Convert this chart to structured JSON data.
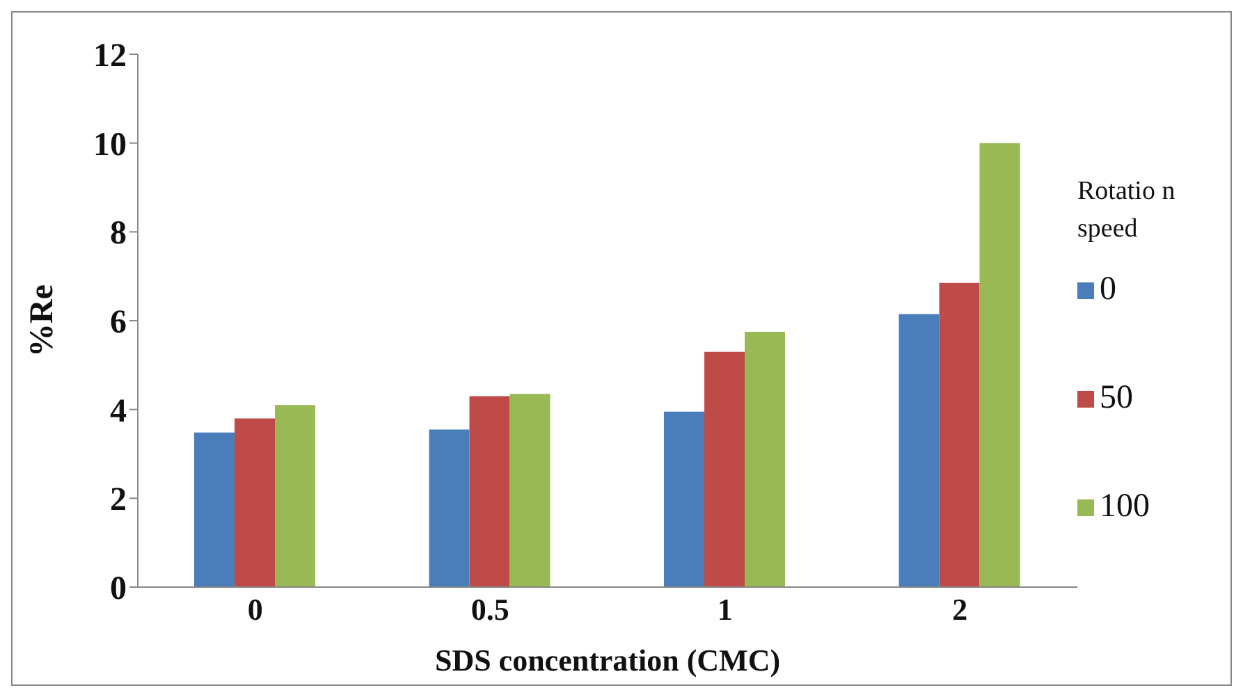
{
  "chart_data": {
    "type": "bar",
    "xlabel": "SDS concentration (CMC)",
    "ylabel": "%Re",
    "legend_title": "Rotatio n speed",
    "categories": [
      "0",
      "0.5",
      "1",
      "2"
    ],
    "series": [
      {
        "name": "0",
        "color": "#4a7ebb",
        "values": [
          3.48,
          3.55,
          3.95,
          6.15
        ]
      },
      {
        "name": "50",
        "color": "#be4b48",
        "values": [
          3.8,
          4.3,
          5.3,
          6.85
        ]
      },
      {
        "name": "100",
        "color": "#98b954",
        "values": [
          4.1,
          4.35,
          5.75,
          10.0
        ]
      }
    ],
    "ylim": [
      0,
      12
    ],
    "yticks": [
      0,
      2,
      4,
      6,
      8,
      10,
      12
    ],
    "grid": false,
    "legend": "right"
  }
}
